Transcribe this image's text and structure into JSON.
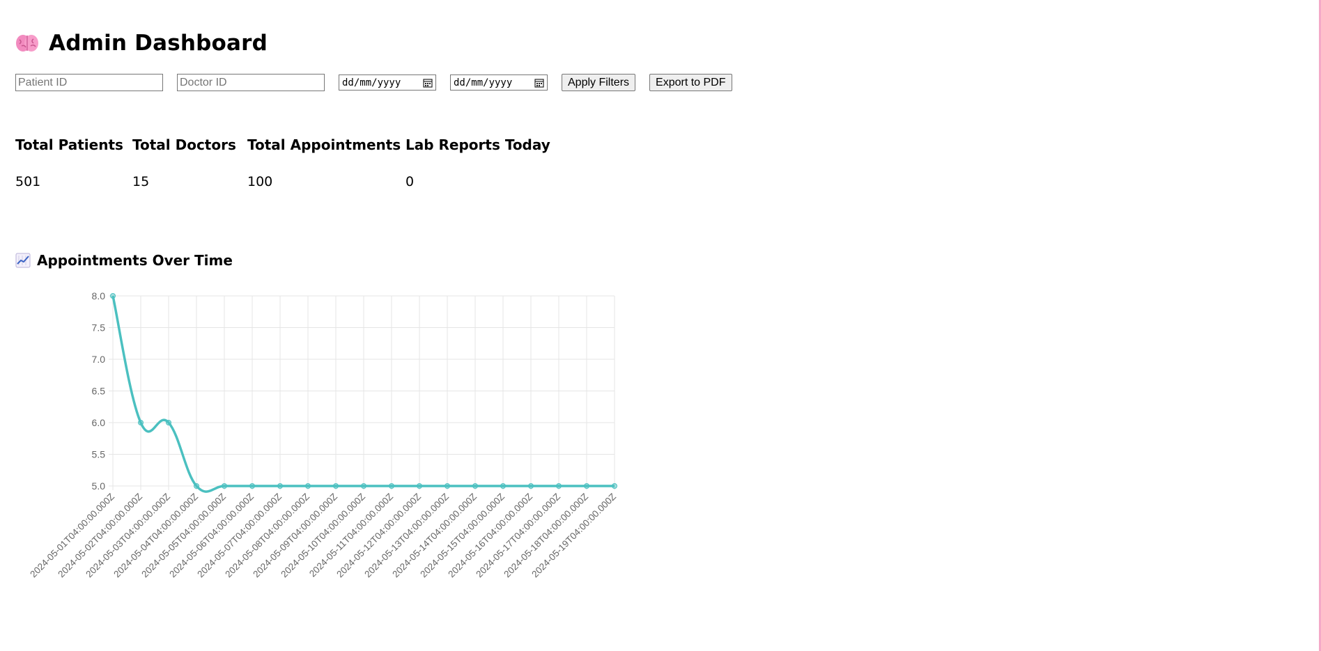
{
  "header": {
    "title": "Admin Dashboard",
    "icon": "brain-icon"
  },
  "filters": {
    "patient_placeholder": "Patient ID",
    "doctor_placeholder": "Doctor ID",
    "start_date": "dd/mm/yyyy",
    "end_date": "dd/mm/yyyy",
    "apply_label": "Apply Filters",
    "export_label": "Export to PDF"
  },
  "stats": [
    {
      "label": "Total Patients",
      "value": "501"
    },
    {
      "label": "Total Doctors",
      "value": "15"
    },
    {
      "label": "Total Appointments",
      "value": "100"
    },
    {
      "label": "Lab Reports Today",
      "value": "0"
    }
  ],
  "section": {
    "title": "Appointments Over Time",
    "icon": "chart-increasing-icon"
  },
  "chart_data": {
    "type": "line",
    "x": [
      "2024-05-01T04:00:00.000Z",
      "2024-05-02T04:00:00.000Z",
      "2024-05-03T04:00:00.000Z",
      "2024-05-04T04:00:00.000Z",
      "2024-05-05T04:00:00.000Z",
      "2024-05-06T04:00:00.000Z",
      "2024-05-07T04:00:00.000Z",
      "2024-05-08T04:00:00.000Z",
      "2024-05-09T04:00:00.000Z",
      "2024-05-10T04:00:00.000Z",
      "2024-05-11T04:00:00.000Z",
      "2024-05-12T04:00:00.000Z",
      "2024-05-13T04:00:00.000Z",
      "2024-05-14T04:00:00.000Z",
      "2024-05-15T04:00:00.000Z",
      "2024-05-16T04:00:00.000Z",
      "2024-05-17T04:00:00.000Z",
      "2024-05-18T04:00:00.000Z",
      "2024-05-19T04:00:00.000Z"
    ],
    "series": [
      {
        "values": [
          8,
          6,
          6,
          5,
          5,
          5,
          5,
          5,
          5,
          5,
          5,
          5,
          5,
          5,
          5,
          5,
          5,
          5,
          5
        ]
      }
    ],
    "yticks": [
      "8.0",
      "7.5",
      "7.0",
      "6.5",
      "6.0",
      "5.5",
      "5.0"
    ],
    "ylim": [
      5,
      8
    ],
    "grid": true,
    "line_color": "#4bc0c0",
    "grid_color": "#e5e5e5",
    "tick_color": "#666666"
  }
}
